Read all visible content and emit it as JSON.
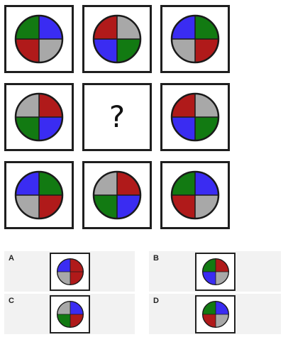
{
  "colors": {
    "red": "#b01a1a",
    "green": "#127a12",
    "blue": "#3a2cf2",
    "gray": "#a8a8a8",
    "outline": "#1a1a1a"
  },
  "grid": {
    "missing_label": "?",
    "cells": [
      {
        "id": "r1c1",
        "quadrants": {
          "tl": "green",
          "tr": "blue",
          "br": "gray",
          "bl": "red"
        }
      },
      {
        "id": "r1c2",
        "quadrants": {
          "tl": "red",
          "tr": "gray",
          "br": "green",
          "bl": "blue"
        }
      },
      {
        "id": "r1c3",
        "quadrants": {
          "tl": "blue",
          "tr": "green",
          "br": "red",
          "bl": "gray"
        }
      },
      {
        "id": "r2c1",
        "quadrants": {
          "tl": "gray",
          "tr": "red",
          "br": "blue",
          "bl": "green"
        }
      },
      {
        "id": "r2c2",
        "missing": true
      },
      {
        "id": "r2c3",
        "quadrants": {
          "tl": "red",
          "tr": "gray",
          "br": "green",
          "bl": "blue"
        }
      },
      {
        "id": "r3c1",
        "quadrants": {
          "tl": "blue",
          "tr": "green",
          "br": "red",
          "bl": "gray"
        }
      },
      {
        "id": "r3c2",
        "quadrants": {
          "tl": "gray",
          "tr": "red",
          "br": "blue",
          "bl": "green"
        }
      },
      {
        "id": "r3c3",
        "quadrants": {
          "tl": "green",
          "tr": "blue",
          "br": "gray",
          "bl": "red"
        }
      }
    ]
  },
  "options": [
    {
      "letter": "A",
      "quadrants": {
        "tl": "blue",
        "tr": "red",
        "br": "red",
        "bl": "gray"
      }
    },
    {
      "letter": "B",
      "quadrants": {
        "tl": "green",
        "tr": "red",
        "br": "gray",
        "bl": "blue"
      }
    },
    {
      "letter": "C",
      "quadrants": {
        "tl": "gray",
        "tr": "blue",
        "br": "red",
        "bl": "green"
      }
    },
    {
      "letter": "D",
      "quadrants": {
        "tl": "green",
        "tr": "blue",
        "br": "gray",
        "bl": "red"
      }
    }
  ]
}
